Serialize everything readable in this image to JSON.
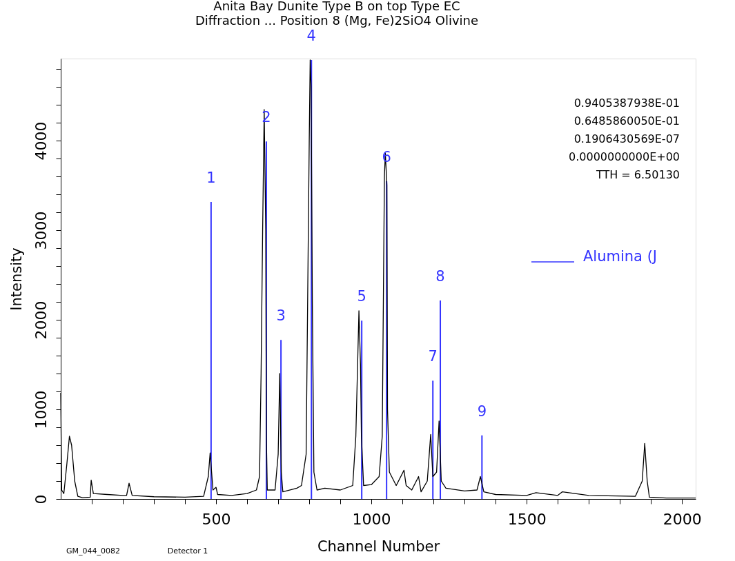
{
  "chart_data": {
    "type": "line",
    "title": "Anita Bay Dunite Type B on top Type EC",
    "subtitle": "Diffraction ... Position 8 (Mg, Fe)2SiO4 Olivine",
    "xlabel": "Channel Number",
    "ylabel": "Intensity",
    "xlim": [
      0,
      2044
    ],
    "ylim": [
      0,
      4915
    ],
    "xticks": [
      {
        "value": 100,
        "label": null
      },
      {
        "value": 200,
        "label": null
      },
      {
        "value": 300,
        "label": null
      },
      {
        "value": 400,
        "label": null
      },
      500,
      {
        "value": 600,
        "label": null
      },
      {
        "value": 700,
        "label": null
      },
      {
        "value": 800,
        "label": null
      },
      {
        "value": 900,
        "label": null
      },
      1000,
      {
        "value": 1100,
        "label": null
      },
      {
        "value": 1200,
        "label": null
      },
      {
        "value": 1300,
        "label": null
      },
      {
        "value": 1400,
        "label": null
      },
      1500,
      {
        "value": 1600,
        "label": null
      },
      {
        "value": 1700,
        "label": null
      },
      {
        "value": 1800,
        "label": null
      },
      {
        "value": 1900,
        "label": null
      },
      2000
    ],
    "yticks": [
      0,
      {
        "value": 200,
        "label": null
      },
      {
        "value": 400,
        "label": null
      },
      {
        "value": 600,
        "label": null
      },
      {
        "value": 800,
        "label": null
      },
      1000,
      {
        "value": 1200,
        "label": null
      },
      {
        "value": 1400,
        "label": null
      },
      {
        "value": 1600,
        "label": null
      },
      {
        "value": 1800,
        "label": null
      },
      2000,
      {
        "value": 2200,
        "label": null
      },
      {
        "value": 2400,
        "label": null
      },
      {
        "value": 2600,
        "label": null
      },
      {
        "value": 2800,
        "label": null
      },
      3000,
      {
        "value": 3200,
        "label": null
      },
      {
        "value": 3400,
        "label": null
      },
      {
        "value": 3600,
        "label": null
      },
      {
        "value": 3800,
        "label": null
      },
      4000,
      {
        "value": 4200,
        "label": null
      },
      {
        "value": 4400,
        "label": null
      },
      {
        "value": 4600,
        "label": null
      },
      {
        "value": 4800,
        "label": null
      }
    ],
    "grid": false,
    "legend": "top right",
    "line_style": "solid",
    "marker": "none",
    "series": [
      {
        "color": "#000000",
        "x": [
          0,
          3,
          10,
          20,
          28,
          35,
          45,
          55,
          70,
          95,
          98,
          105,
          150,
          200,
          212,
          220,
          230,
          300,
          400,
          460,
          475,
          481,
          490,
          500,
          505,
          550,
          600,
          630,
          640,
          645,
          650,
          655,
          660,
          662,
          665,
          690,
          700,
          705,
          710,
          715,
          760,
          775,
          790,
          800,
          803,
          806,
          810,
          815,
          825,
          850,
          900,
          940,
          950,
          960,
          965,
          968,
          975,
          1000,
          1025,
          1035,
          1042,
          1045,
          1050,
          1052,
          1058,
          1080,
          1105,
          1112,
          1130,
          1152,
          1160,
          1180,
          1191,
          1198,
          1210,
          1218,
          1225,
          1240,
          1300,
          1340,
          1351,
          1362,
          1400,
          1500,
          1530,
          1600,
          1615,
          1700,
          1850,
          1872,
          1880,
          1888,
          1895,
          1950,
          2044
        ],
        "values": [
          1185,
          100,
          60,
          400,
          700,
          600,
          200,
          30,
          15,
          20,
          210,
          60,
          50,
          40,
          40,
          175,
          40,
          25,
          20,
          30,
          250,
          515,
          100,
          130,
          50,
          40,
          60,
          100,
          250,
          1400,
          3000,
          4346,
          3000,
          700,
          100,
          100,
          500,
          1400,
          300,
          80,
          120,
          150,
          500,
          4000,
          4900,
          4600,
          2200,
          300,
          100,
          120,
          100,
          150,
          700,
          2100,
          1500,
          700,
          150,
          160,
          250,
          700,
          3600,
          3860,
          3500,
          1000,
          300,
          150,
          320,
          150,
          100,
          250,
          80,
          200,
          720,
          250,
          300,
          870,
          200,
          120,
          90,
          100,
          250,
          80,
          50,
          40,
          70,
          40,
          80,
          40,
          30,
          200,
          620,
          200,
          20,
          10,
          10
        ]
      },
      {
        "type": "bar",
        "name": "Alumina (J",
        "color": "#3333ff",
        "x": [
          484,
          662,
          709,
          807,
          969,
          1049,
          1198,
          1222,
          1356
        ],
        "values": [
          3315,
          3990,
          1775,
          4900,
          1990,
          3545,
          1320,
          2215,
          710
        ]
      }
    ],
    "annotations": [
      {
        "text": "1",
        "x": 484,
        "y": 3315
      },
      {
        "text": "2",
        "x": 662,
        "y": 3990
      },
      {
        "text": "3",
        "x": 709,
        "y": 1775
      },
      {
        "text": "4",
        "x": 807,
        "y": 4900
      },
      {
        "text": "5",
        "x": 969,
        "y": 1990
      },
      {
        "text": "6",
        "x": 1049,
        "y": 3545
      },
      {
        "text": "7",
        "x": 1198,
        "y": 1320
      },
      {
        "text": "8",
        "x": 1222,
        "y": 2215
      },
      {
        "text": "9",
        "x": 1356,
        "y": 710
      },
      "0.9405387938E-01",
      "0.6485860050E-01",
      "0.1906430569E-07",
      "0.0000000000E+00",
      "TTH =      6.50130",
      "GM_044_0082",
      "Detector 1"
    ]
  }
}
